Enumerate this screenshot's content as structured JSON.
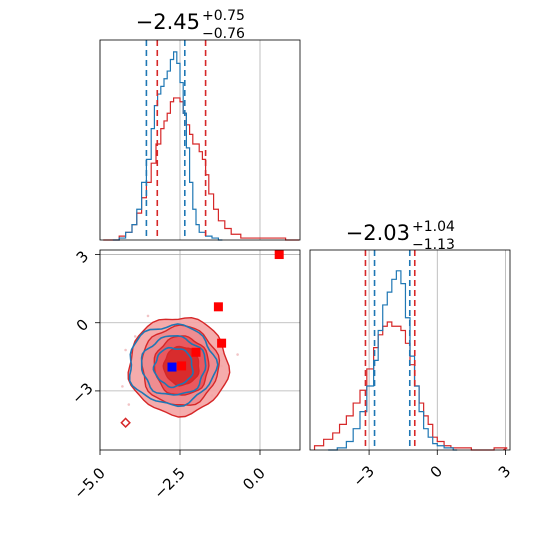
{
  "chart_data": {
    "type": "corner",
    "grid": true,
    "colors": {
      "red": "#d62728",
      "blue": "#1f77b4",
      "red_fill": "#f4a3a3",
      "red_mid": "#e8535a",
      "marker_blue": "#0000ff",
      "marker_red": "#ff0000"
    },
    "param1": {
      "title": {
        "median": "−2.45",
        "plus": "+0.75",
        "minus": "−0.76"
      },
      "range": [
        -5.0,
        1.25
      ],
      "ticks": [
        -5.0,
        -2.5,
        0.0
      ],
      "tick_labels": [
        "−5.0",
        "−2.5",
        "0.0"
      ],
      "red_quantiles": [
        -3.21,
        -2.45,
        -1.7
      ],
      "blue_quantiles": [
        -3.55,
        -2.35
      ],
      "red_hist": [
        [
          -4.9,
          0.0
        ],
        [
          -4.6,
          0.0
        ],
        [
          -4.4,
          0.02
        ],
        [
          -4.2,
          0.04
        ],
        [
          -4.0,
          0.08
        ],
        [
          -3.85,
          0.14
        ],
        [
          -3.7,
          0.22
        ],
        [
          -3.55,
          0.3
        ],
        [
          -3.4,
          0.4
        ],
        [
          -3.25,
          0.5
        ],
        [
          -3.1,
          0.58
        ],
        [
          -3.0,
          0.62
        ],
        [
          -2.9,
          0.66
        ],
        [
          -2.8,
          0.72
        ],
        [
          -2.7,
          0.74
        ],
        [
          -2.6,
          0.74
        ],
        [
          -2.5,
          0.72
        ],
        [
          -2.4,
          0.66
        ],
        [
          -2.3,
          0.6
        ],
        [
          -2.2,
          0.55
        ],
        [
          -2.1,
          0.5
        ],
        [
          -2.0,
          0.5
        ],
        [
          -1.9,
          0.46
        ],
        [
          -1.8,
          0.42
        ],
        [
          -1.7,
          0.34
        ],
        [
          -1.6,
          0.24
        ],
        [
          -1.45,
          0.16
        ],
        [
          -1.3,
          0.1
        ],
        [
          -1.1,
          0.06
        ],
        [
          -0.9,
          0.03
        ],
        [
          -0.6,
          0.01
        ],
        [
          -0.3,
          0.01
        ],
        [
          0.0,
          0.01
        ],
        [
          0.4,
          0.01
        ],
        [
          0.8,
          0.0
        ],
        [
          1.1,
          0.0
        ]
      ],
      "blue_hist": [
        [
          -4.6,
          0.0
        ],
        [
          -4.4,
          0.01
        ],
        [
          -4.2,
          0.04
        ],
        [
          -4.0,
          0.08
        ],
        [
          -3.85,
          0.16
        ],
        [
          -3.7,
          0.3
        ],
        [
          -3.55,
          0.42
        ],
        [
          -3.4,
          0.58
        ],
        [
          -3.3,
          0.7
        ],
        [
          -3.2,
          0.76
        ],
        [
          -3.1,
          0.8
        ],
        [
          -3.0,
          0.84
        ],
        [
          -2.9,
          0.88
        ],
        [
          -2.8,
          0.94
        ],
        [
          -2.7,
          0.98
        ],
        [
          -2.6,
          0.92
        ],
        [
          -2.5,
          0.82
        ],
        [
          -2.4,
          0.66
        ],
        [
          -2.3,
          0.48
        ],
        [
          -2.2,
          0.3
        ],
        [
          -2.1,
          0.16
        ],
        [
          -2.0,
          0.08
        ],
        [
          -1.9,
          0.04
        ],
        [
          -1.7,
          0.02
        ],
        [
          -1.5,
          0.01
        ],
        [
          -1.3,
          0.0
        ]
      ]
    },
    "param2": {
      "title": {
        "median": "−2.03",
        "plus": "+1.04",
        "minus": "−1.13"
      },
      "range": [
        -5.6,
        3.2
      ],
      "ticks": [
        -3,
        0,
        3
      ],
      "tick_labels": [
        "−3",
        "0",
        "3"
      ],
      "red_quantiles": [
        -3.16,
        -2.03,
        -0.99
      ],
      "blue_quantiles": [
        -2.76,
        -1.21
      ],
      "red_hist": [
        [
          -5.4,
          0.02
        ],
        [
          -5.0,
          0.05
        ],
        [
          -4.6,
          0.08
        ],
        [
          -4.3,
          0.12
        ],
        [
          -4.0,
          0.16
        ],
        [
          -3.7,
          0.22
        ],
        [
          -3.4,
          0.28
        ],
        [
          -3.1,
          0.38
        ],
        [
          -2.8,
          0.48
        ],
        [
          -2.6,
          0.54
        ],
        [
          -2.4,
          0.58
        ],
        [
          -2.2,
          0.6
        ],
        [
          -2.0,
          0.58
        ],
        [
          -1.8,
          0.58
        ],
        [
          -1.6,
          0.56
        ],
        [
          -1.4,
          0.5
        ],
        [
          -1.2,
          0.4
        ],
        [
          -1.0,
          0.3
        ],
        [
          -0.8,
          0.22
        ],
        [
          -0.6,
          0.16
        ],
        [
          -0.4,
          0.12
        ],
        [
          -0.2,
          0.06
        ],
        [
          0.0,
          0.04
        ],
        [
          0.3,
          0.02
        ],
        [
          0.6,
          0.01
        ],
        [
          1.0,
          0.01
        ],
        [
          1.5,
          0.0
        ],
        [
          2.0,
          0.0
        ],
        [
          2.5,
          0.01
        ],
        [
          2.9,
          0.01
        ]
      ],
      "blue_hist": [
        [
          -4.8,
          0.0
        ],
        [
          -4.4,
          0.01
        ],
        [
          -4.0,
          0.04
        ],
        [
          -3.7,
          0.1
        ],
        [
          -3.4,
          0.18
        ],
        [
          -3.1,
          0.3
        ],
        [
          -2.8,
          0.42
        ],
        [
          -2.6,
          0.56
        ],
        [
          -2.4,
          0.68
        ],
        [
          -2.2,
          0.74
        ],
        [
          -2.0,
          0.8
        ],
        [
          -1.8,
          0.84
        ],
        [
          -1.6,
          0.78
        ],
        [
          -1.4,
          0.62
        ],
        [
          -1.2,
          0.44
        ],
        [
          -1.0,
          0.3
        ],
        [
          -0.8,
          0.18
        ],
        [
          -0.6,
          0.1
        ],
        [
          -0.4,
          0.06
        ],
        [
          -0.2,
          0.03
        ],
        [
          0.0,
          0.02
        ],
        [
          0.3,
          0.01
        ],
        [
          0.7,
          0.0
        ]
      ]
    },
    "joint": {
      "red_contours": [
        {
          "cx": -2.55,
          "cy": -1.9,
          "rx": 1.55,
          "ry": 2.15,
          "level": "outer"
        },
        {
          "cx": -2.5,
          "cy": -1.9,
          "rx": 1.2,
          "ry": 1.75,
          "level": "mid"
        },
        {
          "cx": -2.45,
          "cy": -1.9,
          "rx": 0.85,
          "ry": 1.3,
          "level": "inner"
        },
        {
          "cx": -2.45,
          "cy": -1.9,
          "rx": 0.55,
          "ry": 0.85,
          "level": "core"
        }
      ],
      "blue_contours": [
        {
          "cx": -2.75,
          "cy": -1.85,
          "rx": 1.35,
          "ry": 1.75
        },
        {
          "cx": -2.7,
          "cy": -1.9,
          "rx": 1.0,
          "ry": 1.3
        },
        {
          "cx": -2.7,
          "cy": -1.95,
          "rx": 0.6,
          "ry": 0.85
        }
      ],
      "red_markers": [
        [
          0.6,
          3.0
        ],
        [
          -1.3,
          0.7
        ],
        [
          -1.2,
          -0.9
        ],
        [
          -2.0,
          -1.3
        ],
        [
          -2.45,
          -1.9
        ]
      ],
      "blue_markers": [
        [
          -2.75,
          -1.95
        ]
      ],
      "outlier_points": [
        [
          -4.2,
          -4.4
        ]
      ],
      "scatter_dots": [
        [
          -4.2,
          -1.2
        ],
        [
          -4.1,
          -3.6
        ],
        [
          -3.9,
          -0.6
        ],
        [
          -3.5,
          0.3
        ],
        [
          -1.5,
          -3.2
        ],
        [
          -1.2,
          -1.9
        ],
        [
          -0.7,
          -1.4
        ],
        [
          -4.3,
          -2.8
        ]
      ]
    }
  }
}
